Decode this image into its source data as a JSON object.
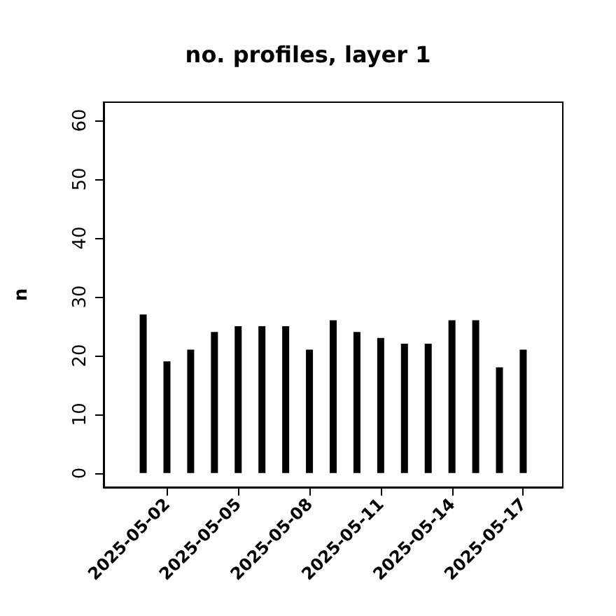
{
  "chart_data": {
    "type": "bar",
    "title": "no. profiles, layer 1",
    "ylabel": "n",
    "x": [
      "2025-05-01",
      "2025-05-02",
      "2025-05-03",
      "2025-05-04",
      "2025-05-05",
      "2025-05-06",
      "2025-05-07",
      "2025-05-08",
      "2025-05-09",
      "2025-05-10",
      "2025-05-11",
      "2025-05-12",
      "2025-05-13",
      "2025-05-14",
      "2025-05-15",
      "2025-05-16",
      "2025-05-17"
    ],
    "values": [
      27,
      19,
      21,
      24,
      25,
      25,
      25,
      21,
      26,
      24,
      23,
      22,
      22,
      26,
      26,
      18,
      21
    ],
    "color": "#000000",
    "xlim": [
      "2025-04-29T08:00",
      "2025-05-18T16:00"
    ],
    "xticks": [
      "2025-05-02",
      "2025-05-05",
      "2025-05-08",
      "2025-05-11",
      "2025-05-14",
      "2025-05-17"
    ],
    "ylim": [
      -2.4,
      63.1
    ],
    "yticks": [
      0,
      10,
      20,
      30,
      40,
      50,
      60
    ],
    "grid": false
  }
}
